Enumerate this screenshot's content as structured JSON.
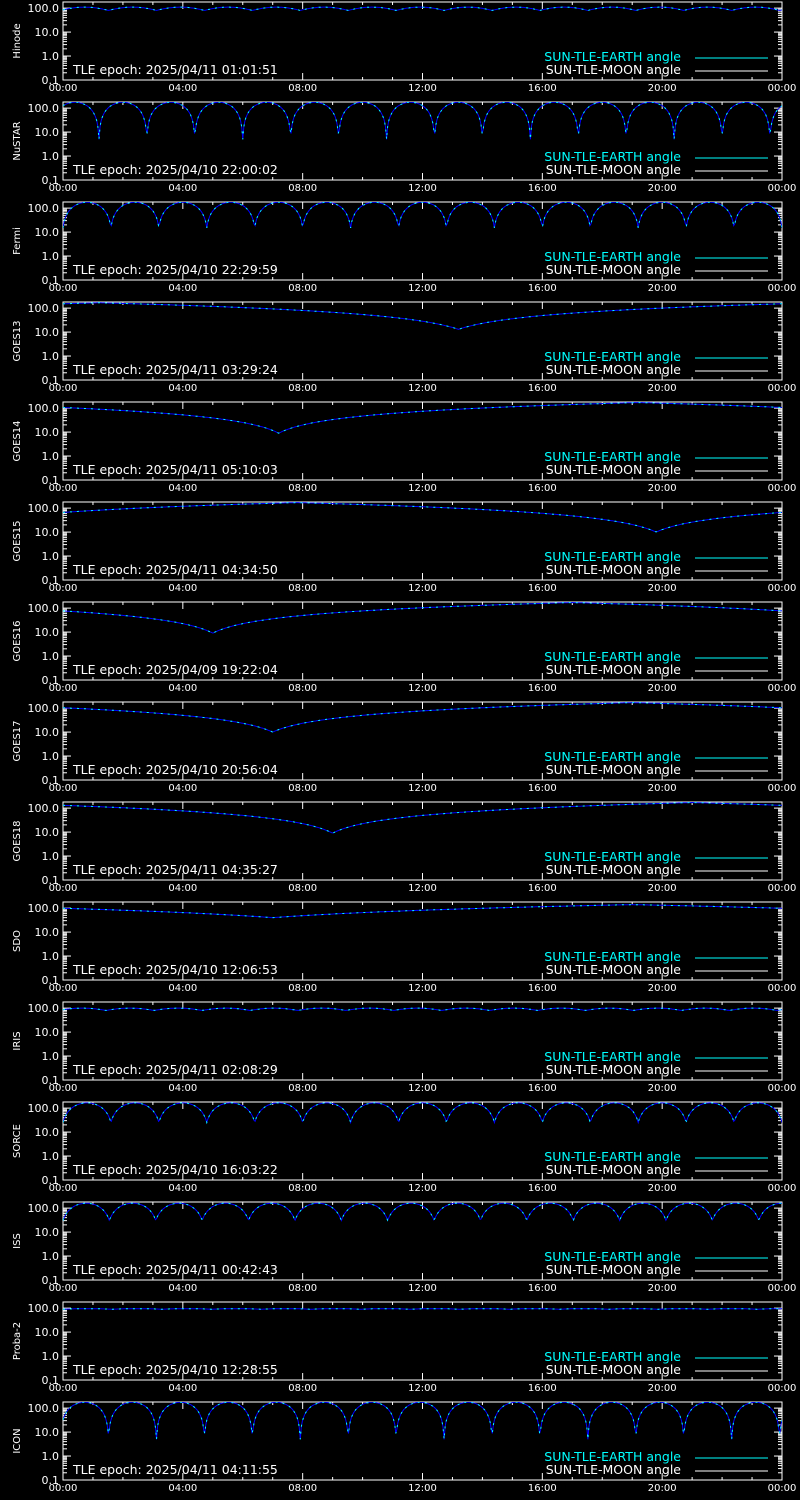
{
  "colors": {
    "background": "#000000",
    "axis": "#ffffff",
    "earth": "#0000ff",
    "earth_legend": "#00ffff",
    "moon": "#ffffff"
  },
  "legend": {
    "earth_label": "SUN-TLE-EARTH angle",
    "moon_label": "SUN-TLE-MOON angle"
  },
  "chart_data": [
    {
      "type": "line",
      "ylabel": "Hinode",
      "epoch_text": "TLE epoch: 2025/04/11 01:01:51",
      "x_ticks": [
        "00:00",
        "04:00",
        "08:00",
        "12:00",
        "16:00",
        "20:00",
        "00:00"
      ],
      "y_ticks": [
        "100.0",
        "10.0",
        "1.0",
        "0.1"
      ],
      "ylim": [
        0.1,
        180
      ],
      "y_scale": "log",
      "x_range_hours": [
        0,
        24
      ],
      "pattern": "orbital",
      "orbits": 15,
      "min_deg": 80,
      "max_deg": 110,
      "phase": 0.05
    },
    {
      "type": "line",
      "ylabel": "NuSTAR",
      "epoch_text": "TLE epoch: 2025/04/10 22:00:02",
      "x_ticks": [
        "00:00",
        "04:00",
        "08:00",
        "12:00",
        "16:00",
        "20:00",
        "00:00"
      ],
      "y_ticks": [
        "100.0",
        "10.0",
        "1.0",
        "0.1"
      ],
      "ylim": [
        0.1,
        180
      ],
      "y_scale": "log",
      "x_range_hours": [
        0,
        24
      ],
      "pattern": "orbital",
      "orbits": 15,
      "min_deg": 5,
      "max_deg": 175,
      "phase": 0.25
    },
    {
      "type": "line",
      "ylabel": "Fermi",
      "epoch_text": "TLE epoch: 2025/04/10 22:29:59",
      "x_ticks": [
        "00:00",
        "04:00",
        "08:00",
        "12:00",
        "16:00",
        "20:00",
        "00:00"
      ],
      "y_ticks": [
        "100.0",
        "10.0",
        "1.0",
        "0.1"
      ],
      "ylim": [
        0.1,
        180
      ],
      "y_scale": "log",
      "x_range_hours": [
        0,
        24
      ],
      "pattern": "orbital",
      "orbits": 15,
      "min_deg": 15,
      "max_deg": 175,
      "phase": 0.0
    },
    {
      "type": "line",
      "ylabel": "GOES13",
      "epoch_text": "TLE epoch: 2025/04/11 03:29:24",
      "x_ticks": [
        "00:00",
        "04:00",
        "08:00",
        "12:00",
        "16:00",
        "20:00",
        "00:00"
      ],
      "y_ticks": [
        "100.0",
        "10.0",
        "1.0",
        "0.1"
      ],
      "ylim": [
        0.1,
        180
      ],
      "y_scale": "log",
      "x_range_hours": [
        0,
        24
      ],
      "pattern": "daily",
      "min_hour": 13.2,
      "min_deg": 13,
      "max_deg": 167
    },
    {
      "type": "line",
      "ylabel": "GOES14",
      "epoch_text": "TLE epoch: 2025/04/11 05:10:03",
      "x_ticks": [
        "00:00",
        "04:00",
        "08:00",
        "12:00",
        "16:00",
        "20:00",
        "00:00"
      ],
      "y_ticks": [
        "100.0",
        "10.0",
        "1.0",
        "0.1"
      ],
      "ylim": [
        0.1,
        180
      ],
      "y_scale": "log",
      "x_range_hours": [
        0,
        24
      ],
      "pattern": "daily",
      "min_hour": 7.2,
      "min_deg": 9,
      "max_deg": 171
    },
    {
      "type": "line",
      "ylabel": "GOES15",
      "epoch_text": "TLE epoch: 2025/04/11 04:34:50",
      "x_ticks": [
        "00:00",
        "04:00",
        "08:00",
        "12:00",
        "16:00",
        "20:00",
        "00:00"
      ],
      "y_ticks": [
        "100.0",
        "10.0",
        "1.0",
        "0.1"
      ],
      "ylim": [
        0.1,
        180
      ],
      "y_scale": "log",
      "x_range_hours": [
        0,
        24
      ],
      "pattern": "daily",
      "min_hour": 19.8,
      "min_deg": 10,
      "max_deg": 170
    },
    {
      "type": "line",
      "ylabel": "GOES16",
      "epoch_text": "TLE epoch: 2025/04/09 19:22:04",
      "x_ticks": [
        "00:00",
        "04:00",
        "08:00",
        "12:00",
        "16:00",
        "20:00",
        "00:00"
      ],
      "y_ticks": [
        "100.0",
        "10.0",
        "1.0",
        "0.1"
      ],
      "ylim": [
        0.1,
        180
      ],
      "y_scale": "log",
      "x_range_hours": [
        0,
        24
      ],
      "pattern": "daily",
      "min_hour": 5.0,
      "min_deg": 9,
      "max_deg": 171
    },
    {
      "type": "line",
      "ylabel": "GOES17",
      "epoch_text": "TLE epoch: 2025/04/10 20:56:04",
      "x_ticks": [
        "00:00",
        "04:00",
        "08:00",
        "12:00",
        "16:00",
        "20:00",
        "00:00"
      ],
      "y_ticks": [
        "100.0",
        "10.0",
        "1.0",
        "0.1"
      ],
      "ylim": [
        0.1,
        180
      ],
      "y_scale": "log",
      "x_range_hours": [
        0,
        24
      ],
      "pattern": "daily",
      "min_hour": 7.0,
      "min_deg": 10,
      "max_deg": 170
    },
    {
      "type": "line",
      "ylabel": "GOES18",
      "epoch_text": "TLE epoch: 2025/04/11 04:35:27",
      "x_ticks": [
        "00:00",
        "04:00",
        "08:00",
        "12:00",
        "16:00",
        "20:00",
        "00:00"
      ],
      "y_ticks": [
        "100.0",
        "10.0",
        "1.0",
        "0.1"
      ],
      "ylim": [
        0.1,
        180
      ],
      "y_scale": "log",
      "x_range_hours": [
        0,
        24
      ],
      "pattern": "daily",
      "min_hour": 9.0,
      "min_deg": 9,
      "max_deg": 171
    },
    {
      "type": "line",
      "ylabel": "SDO",
      "epoch_text": "TLE epoch: 2025/04/10 12:06:53",
      "x_ticks": [
        "00:00",
        "04:00",
        "08:00",
        "12:00",
        "16:00",
        "20:00",
        "00:00"
      ],
      "y_ticks": [
        "100.0",
        "10.0",
        "1.0",
        "0.1"
      ],
      "ylim": [
        0.1,
        180
      ],
      "y_scale": "log",
      "x_range_hours": [
        0,
        24
      ],
      "pattern": "daily",
      "min_hour": 7.0,
      "min_deg": 40,
      "max_deg": 140
    },
    {
      "type": "line",
      "ylabel": "IRIS",
      "epoch_text": "TLE epoch: 2025/04/11 02:08:29",
      "x_ticks": [
        "00:00",
        "04:00",
        "08:00",
        "12:00",
        "16:00",
        "20:00",
        "00:00"
      ],
      "y_ticks": [
        "100.0",
        "10.0",
        "1.0",
        "0.1"
      ],
      "ylim": [
        0.1,
        180
      ],
      "y_scale": "log",
      "x_range_hours": [
        0,
        24
      ],
      "pattern": "orbital",
      "orbits": 15,
      "min_deg": 80,
      "max_deg": 100,
      "phase": 0.1
    },
    {
      "type": "line",
      "ylabel": "SORCE",
      "epoch_text": "TLE epoch: 2025/04/10 16:03:22",
      "x_ticks": [
        "00:00",
        "04:00",
        "08:00",
        "12:00",
        "16:00",
        "20:00",
        "00:00"
      ],
      "y_ticks": [
        "100.0",
        "10.0",
        "1.0",
        "0.1"
      ],
      "ylim": [
        0.1,
        180
      ],
      "y_scale": "log",
      "x_range_hours": [
        0,
        24
      ],
      "pattern": "orbital",
      "orbits": 15,
      "min_deg": 25,
      "max_deg": 165,
      "phase": 0.0
    },
    {
      "type": "line",
      "ylabel": "ISS",
      "epoch_text": "TLE epoch: 2025/04/11 00:42:43",
      "x_ticks": [
        "00:00",
        "04:00",
        "08:00",
        "12:00",
        "16:00",
        "20:00",
        "00:00"
      ],
      "y_ticks": [
        "100.0",
        "10.0",
        "1.0",
        "0.1"
      ],
      "ylim": [
        0.1,
        180
      ],
      "y_scale": "log",
      "x_range_hours": [
        0,
        24
      ],
      "pattern": "orbital",
      "orbits": 15.5,
      "min_deg": 30,
      "max_deg": 160,
      "phase": 0.0
    },
    {
      "type": "line",
      "ylabel": "Proba-2",
      "epoch_text": "TLE epoch: 2025/04/10 12:28:55",
      "x_ticks": [
        "00:00",
        "04:00",
        "08:00",
        "12:00",
        "16:00",
        "20:00",
        "00:00"
      ],
      "y_ticks": [
        "100.0",
        "10.0",
        "1.0",
        "0.1"
      ],
      "ylim": [
        0.1,
        180
      ],
      "y_scale": "log",
      "x_range_hours": [
        0,
        24
      ],
      "pattern": "orbital",
      "orbits": 14.5,
      "min_deg": 90,
      "max_deg": 95,
      "phase": 0.0
    },
    {
      "type": "line",
      "ylabel": "ICON",
      "epoch_text": "TLE epoch: 2025/04/11 04:11:55",
      "x_ticks": [
        "00:00",
        "04:00",
        "08:00",
        "12:00",
        "16:00",
        "20:00",
        "00:00"
      ],
      "y_ticks": [
        "100.0",
        "10.0",
        "1.0",
        "0.1"
      ],
      "ylim": [
        0.1,
        180
      ],
      "y_scale": "log",
      "x_range_hours": [
        0,
        24
      ],
      "pattern": "orbital",
      "orbits": 15,
      "min_deg": 5,
      "max_deg": 175,
      "phase": 0.05
    }
  ]
}
